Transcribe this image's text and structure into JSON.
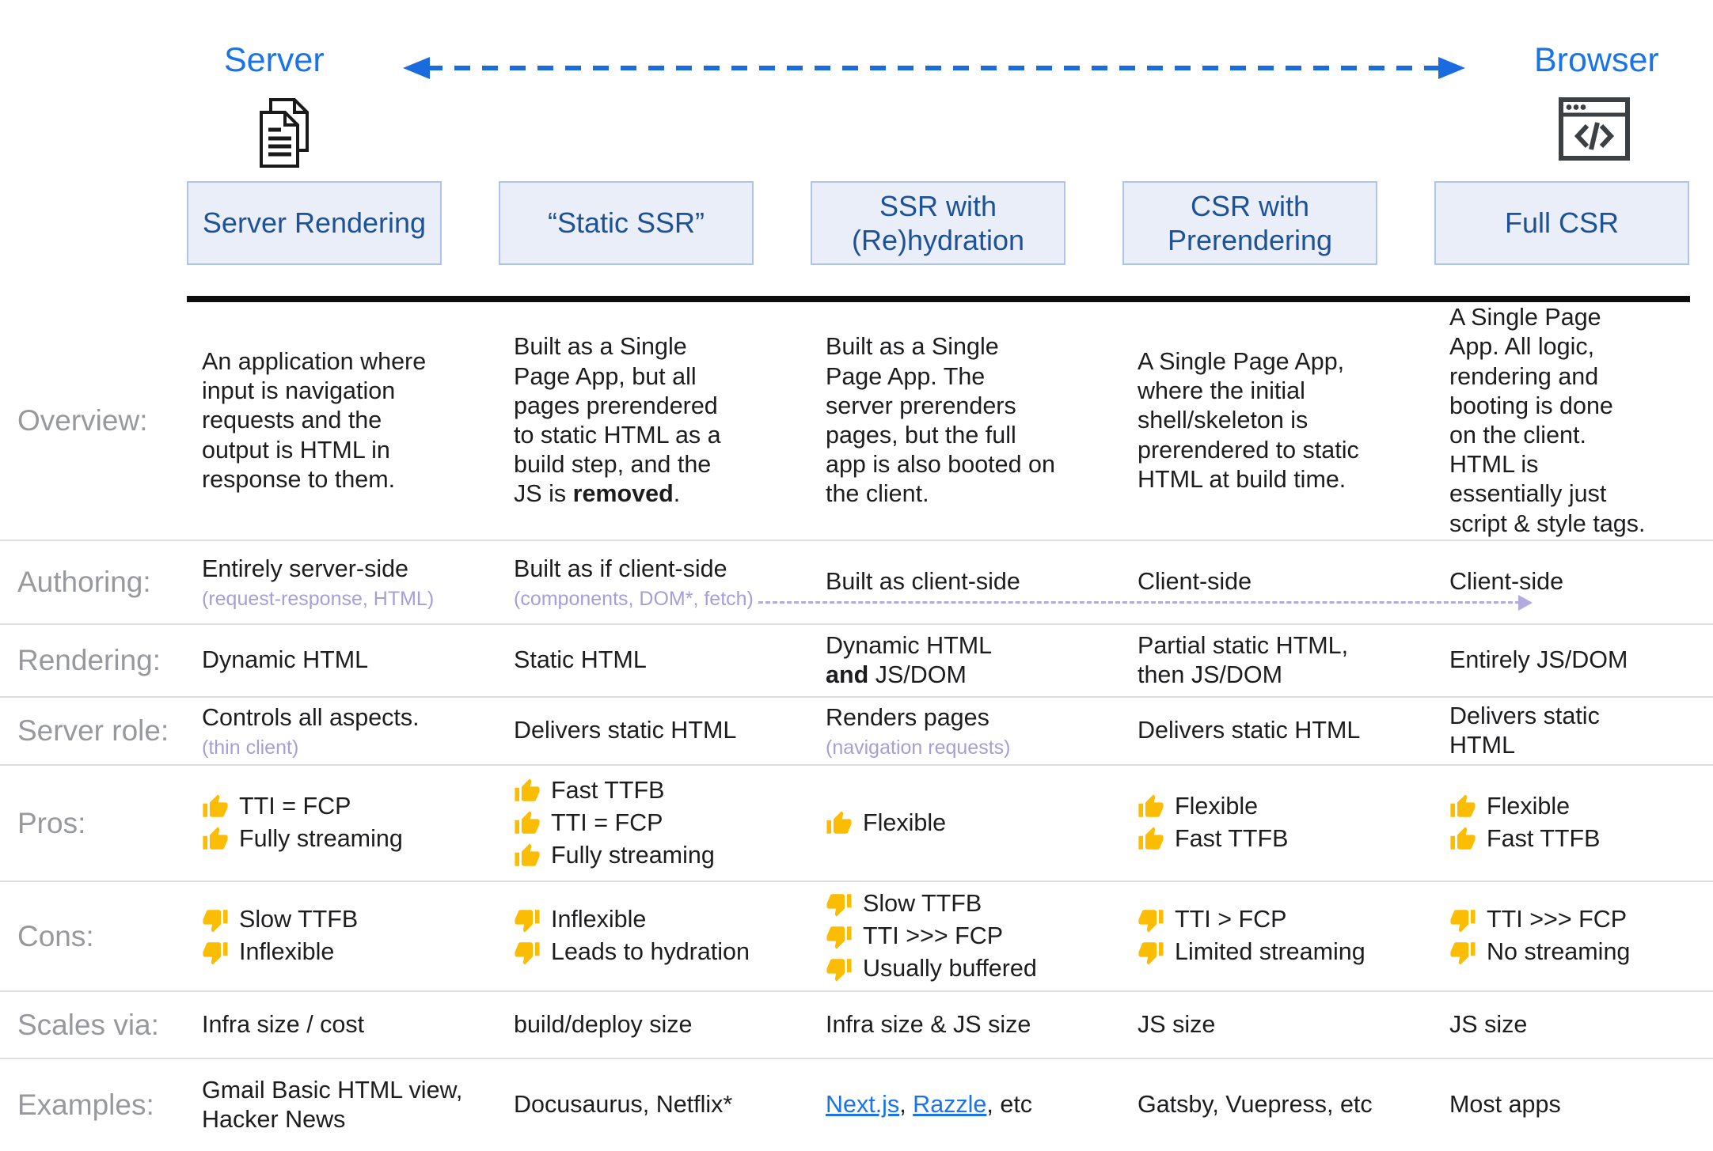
{
  "header": {
    "server_label": "Server",
    "browser_label": "Browser",
    "icons": [
      "document-pages-icon",
      "browser-code-icon",
      "spectrum-arrow"
    ],
    "columns": [
      {
        "id": "server-rendering",
        "label": "Server Rendering"
      },
      {
        "id": "static-ssr",
        "label": "“Static SSR”"
      },
      {
        "id": "ssr-with-rehydration",
        "label": "SSR with (Re)hydration"
      },
      {
        "id": "csr-with-prerendering",
        "label": "CSR with Prerendering"
      },
      {
        "id": "full-csr",
        "label": "Full CSR"
      }
    ]
  },
  "colors": {
    "accent_blue": "#1a73e8",
    "header_text_blue": "#1d5296",
    "header_box_fill": "#e9eef9",
    "header_box_border": "#aec4e8",
    "row_label_gray": "#97999d",
    "note_lavender": "#a79ed8",
    "link_blue": "#1a73e8",
    "thumb_yellow": "#fbbc04",
    "body_text": "#1d1d1f"
  },
  "table": {
    "rows": [
      {
        "id": "overview",
        "label": "Overview:",
        "cells": [
          {
            "lines": [
              [
                {
                  "t": "An application where input is navigation requests and the output is HTML in response to them."
                }
              ]
            ]
          },
          {
            "lines": [
              [
                {
                  "t": "Built as a Single Page App, but all pages prerendered to static HTML as a build step, and the JS is "
                },
                {
                  "t": "removed",
                  "b": true
                },
                {
                  "t": "."
                }
              ]
            ]
          },
          {
            "lines": [
              [
                {
                  "t": "Built as a Single Page App. The server prerenders pages, but the full app is also booted on the client."
                }
              ]
            ]
          },
          {
            "lines": [
              [
                {
                  "t": "A Single Page App, where the initial shell/skeleton is prerendered to static HTML at build time."
                }
              ]
            ]
          },
          {
            "lines": [
              [
                {
                  "t": "A Single Page App. All logic, rendering and booting is done on the client. HTML is essentially just script & style tags."
                }
              ]
            ]
          }
        ]
      },
      {
        "id": "authoring",
        "label": "Authoring:",
        "cells": [
          {
            "lines": [
              [
                {
                  "t": "Entirely server-side"
                }
              ]
            ],
            "note": "(request-response, HTML)"
          },
          {
            "lines": [
              [
                {
                  "t": "Built as if client-side"
                }
              ]
            ],
            "note": "(components, DOM*, fetch)"
          },
          {
            "lines": [
              [
                {
                  "t": "Built as client-side"
                }
              ]
            ]
          },
          {
            "lines": [
              [
                {
                  "t": "Client-side"
                }
              ]
            ]
          },
          {
            "lines": [
              [
                {
                  "t": "Client-side"
                }
              ]
            ]
          }
        ]
      },
      {
        "id": "rendering",
        "label": "Rendering:",
        "cells": [
          {
            "lines": [
              [
                {
                  "t": "Dynamic HTML"
                }
              ]
            ]
          },
          {
            "lines": [
              [
                {
                  "t": "Static HTML"
                }
              ]
            ]
          },
          {
            "lines": [
              [
                {
                  "t": "Dynamic HTML"
                }
              ],
              [
                {
                  "t": "and",
                  "b": true
                },
                {
                  "t": " JS/DOM"
                }
              ]
            ]
          },
          {
            "lines": [
              [
                {
                  "t": "Partial static HTML,"
                }
              ],
              [
                {
                  "t": "then JS/DOM"
                }
              ]
            ]
          },
          {
            "lines": [
              [
                {
                  "t": "Entirely JS/DOM"
                }
              ]
            ]
          }
        ]
      },
      {
        "id": "server-role",
        "label": "Server role:",
        "cells": [
          {
            "lines": [
              [
                {
                  "t": "Controls all aspects."
                }
              ]
            ],
            "note": "(thin client)"
          },
          {
            "lines": [
              [
                {
                  "t": "Delivers static HTML"
                }
              ]
            ]
          },
          {
            "lines": [
              [
                {
                  "t": "Renders pages"
                }
              ]
            ],
            "note": "(navigation requests)"
          },
          {
            "lines": [
              [
                {
                  "t": "Delivers static HTML"
                }
              ]
            ]
          },
          {
            "lines": [
              [
                {
                  "t": "Delivers static HTML"
                }
              ]
            ]
          }
        ]
      },
      {
        "id": "pros",
        "label": "Pros:",
        "cells": [
          {
            "list": {
              "icon": "thumbs-up-icon",
              "items": [
                "TTI = FCP",
                "Fully streaming"
              ]
            }
          },
          {
            "list": {
              "icon": "thumbs-up-icon",
              "items": [
                "Fast TTFB",
                "TTI = FCP",
                "Fully streaming"
              ]
            }
          },
          {
            "list": {
              "icon": "thumbs-up-icon",
              "items": [
                "Flexible"
              ]
            }
          },
          {
            "list": {
              "icon": "thumbs-up-icon",
              "items": [
                "Flexible",
                "Fast TTFB"
              ]
            }
          },
          {
            "list": {
              "icon": "thumbs-up-icon",
              "items": [
                "Flexible",
                "Fast TTFB"
              ]
            }
          }
        ]
      },
      {
        "id": "cons",
        "label": "Cons:",
        "cells": [
          {
            "list": {
              "icon": "thumbs-down-icon",
              "items": [
                "Slow TTFB",
                "Inflexible"
              ]
            }
          },
          {
            "list": {
              "icon": "thumbs-down-icon",
              "items": [
                "Inflexible",
                "Leads to hydration"
              ]
            }
          },
          {
            "list": {
              "icon": "thumbs-down-icon",
              "items": [
                "Slow TTFB",
                "TTI >>> FCP",
                "Usually buffered"
              ]
            }
          },
          {
            "list": {
              "icon": "thumbs-down-icon",
              "items": [
                "TTI > FCP",
                "Limited streaming"
              ]
            }
          },
          {
            "list": {
              "icon": "thumbs-down-icon",
              "items": [
                "TTI >>> FCP",
                "No streaming"
              ]
            }
          }
        ]
      },
      {
        "id": "scales-via",
        "label": "Scales via:",
        "cells": [
          {
            "lines": [
              [
                {
                  "t": "Infra size / cost"
                }
              ]
            ]
          },
          {
            "lines": [
              [
                {
                  "t": "build/deploy size"
                }
              ]
            ]
          },
          {
            "lines": [
              [
                {
                  "t": "Infra size & JS size"
                }
              ]
            ]
          },
          {
            "lines": [
              [
                {
                  "t": "JS size"
                }
              ]
            ]
          },
          {
            "lines": [
              [
                {
                  "t": "JS size"
                }
              ]
            ]
          }
        ]
      },
      {
        "id": "examples",
        "label": "Examples:",
        "cells": [
          {
            "lines": [
              [
                {
                  "t": "Gmail Basic HTML view, Hacker News"
                }
              ]
            ]
          },
          {
            "lines": [
              [
                {
                  "t": "Docusaurus, Netflix*"
                }
              ]
            ]
          },
          {
            "lines": [
              [
                {
                  "t": "Next.js",
                  "link": true
                },
                {
                  "t": ", "
                },
                {
                  "t": "Razzle",
                  "link": true
                },
                {
                  "t": ", etc"
                }
              ]
            ]
          },
          {
            "lines": [
              [
                {
                  "t": "Gatsby, Vuepress, etc"
                }
              ]
            ]
          },
          {
            "lines": [
              [
                {
                  "t": "Most apps"
                }
              ]
            ]
          }
        ]
      }
    ]
  }
}
